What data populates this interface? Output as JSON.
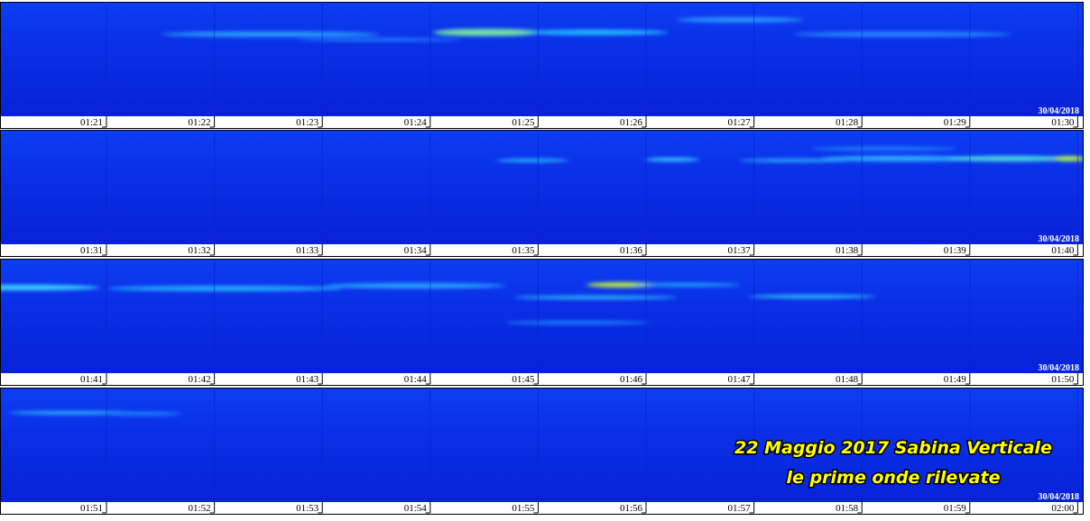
{
  "panels": [
    {
      "date": "30/04/2018",
      "times": [
        "01:21",
        "01:22",
        "01:23",
        "01:24",
        "01:25",
        "01:26",
        "01:27",
        "01:28",
        "01:29",
        "01:30"
      ]
    },
    {
      "date": "30/04/2018",
      "times": [
        "01:31",
        "01:32",
        "01:33",
        "01:34",
        "01:35",
        "01:36",
        "01:37",
        "01:38",
        "01:39",
        "01:40"
      ]
    },
    {
      "date": "30/04/2018",
      "times": [
        "01:41",
        "01:42",
        "01:43",
        "01:44",
        "01:45",
        "01:46",
        "01:47",
        "01:48",
        "01:49",
        "01:50"
      ]
    },
    {
      "date": "30/04/2018",
      "times": [
        "01:51",
        "01:52",
        "01:53",
        "01:54",
        "01:55",
        "01:56",
        "01:57",
        "01:58",
        "01:59",
        "02:00"
      ]
    }
  ],
  "annotation": {
    "lines": [
      "22 Maggio 2017 Sabina Verticale",
      "le prime onde rilevate"
    ]
  }
}
